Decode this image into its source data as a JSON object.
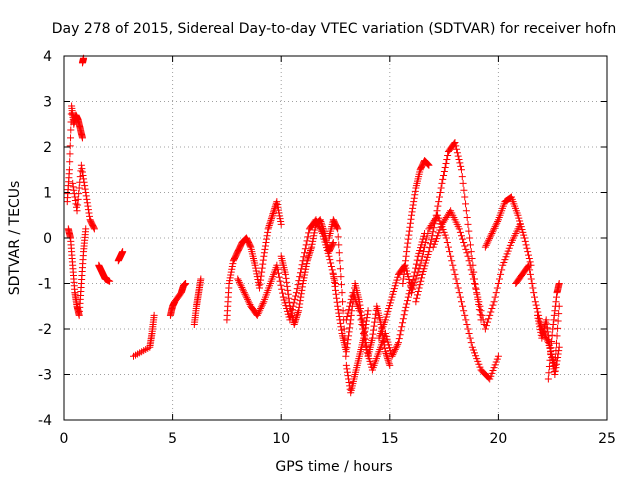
{
  "chart_data": {
    "type": "scatter",
    "title": "Day 278 of 2015, Sidereal Day-to-day VTEC variation (SDTVAR) for receiver hofn",
    "xlabel": "GPS time / hours",
    "ylabel": "SDTVAR / TECUs",
    "xlim": [
      0,
      25
    ],
    "ylim": [
      -4,
      4
    ],
    "xticks": [
      0,
      5,
      10,
      15,
      20,
      25
    ],
    "yticks": [
      -4,
      -3,
      -2,
      -1,
      0,
      1,
      2,
      3,
      4
    ],
    "grid": true,
    "marker": "+",
    "color": "#ff0000",
    "series": [
      {
        "name": "SDTVAR",
        "segments": [
          {
            "x": [
              0.15,
              0.25,
              0.35,
              0.45,
              0.55,
              0.65,
              0.75,
              0.85
            ],
            "y": [
              0.8,
              1.5,
              2.9,
              2.5,
              2.7,
              2.6,
              2.4,
              2.2
            ]
          },
          {
            "x": [
              0.2,
              0.3,
              0.4,
              0.5,
              0.6,
              0.7,
              0.8,
              0.9,
              1.0
            ],
            "y": [
              0.2,
              0.0,
              -0.6,
              -1.2,
              -1.5,
              -1.7,
              -1.0,
              -0.3,
              0.2
            ]
          },
          {
            "x": [
              0.4,
              0.6,
              0.8,
              1.0,
              1.2,
              1.4
            ],
            "y": [
              1.2,
              0.6,
              1.6,
              1.0,
              0.4,
              0.2
            ]
          },
          {
            "x": [
              0.85,
              0.9
            ],
            "y": [
              3.85,
              3.95
            ]
          },
          {
            "x": [
              1.6,
              1.7,
              1.8,
              1.9,
              2.1
            ],
            "y": [
              -0.6,
              -0.7,
              -0.8,
              -0.9,
              -0.95
            ]
          },
          {
            "x": [
              2.5,
              2.6,
              2.7
            ],
            "y": [
              -0.5,
              -0.4,
              -0.3
            ]
          },
          {
            "x": [
              3.2,
              3.95,
              4.05,
              4.15
            ],
            "y": [
              -2.6,
              -2.4,
              -2.1,
              -1.7
            ]
          },
          {
            "x": [
              4.9,
              5.0,
              5.1,
              5.4,
              5.5,
              5.6
            ],
            "y": [
              -1.7,
              -1.5,
              -1.4,
              -1.2,
              -1.05,
              -1.0
            ]
          },
          {
            "x": [
              6.0,
              6.1,
              6.2,
              6.3
            ],
            "y": [
              -1.9,
              -1.5,
              -1.2,
              -0.9
            ]
          },
          {
            "x": [
              7.5,
              7.6,
              7.8,
              8.0,
              8.2,
              8.4,
              8.6,
              8.8,
              9.0,
              9.2,
              9.4,
              9.6,
              9.8,
              10.0
            ],
            "y": [
              -1.8,
              -1.0,
              -0.5,
              -0.3,
              -0.1,
              0.0,
              -0.2,
              -0.6,
              -1.1,
              -0.4,
              0.2,
              0.5,
              0.8,
              0.3
            ]
          },
          {
            "x": [
              8.0,
              8.3,
              8.6,
              8.9,
              9.2,
              9.5,
              9.8,
              10.1,
              10.4,
              10.7,
              11.0,
              11.3,
              11.6,
              11.9,
              12.2,
              12.5
            ],
            "y": [
              -0.9,
              -1.2,
              -1.5,
              -1.7,
              -1.4,
              -1.0,
              -0.6,
              -1.3,
              -1.8,
              -1.2,
              -0.5,
              0.2,
              0.4,
              0.1,
              -0.4,
              -1.0
            ]
          },
          {
            "x": [
              10.0,
              10.2,
              10.4,
              10.6,
              10.8,
              11.0,
              11.2,
              11.4,
              11.6,
              11.8,
              12.0,
              12.2,
              12.4
            ],
            "y": [
              -0.4,
              -0.8,
              -1.5,
              -1.9,
              -1.6,
              -1.0,
              -0.5,
              -0.2,
              0.3,
              0.4,
              0.1,
              -0.3,
              -0.1
            ]
          },
          {
            "x": [
              12.2,
              12.4,
              12.6,
              12.8,
              13.0,
              13.2,
              13.4,
              13.6,
              13.8,
              14.0
            ],
            "y": [
              0.0,
              0.4,
              0.2,
              -1.2,
              -2.8,
              -3.4,
              -3.0,
              -2.6,
              -2.2,
              -1.6
            ]
          },
          {
            "x": [
              12.4,
              12.6,
              12.8,
              13.0,
              13.2,
              13.4,
              13.6,
              13.8,
              14.0,
              14.2,
              14.4,
              14.6,
              14.8,
              15.0
            ],
            "y": [
              -0.8,
              -1.5,
              -2.1,
              -2.5,
              -1.8,
              -1.0,
              -1.4,
              -2.0,
              -2.6,
              -2.2,
              -1.5,
              -1.9,
              -2.5,
              -2.8
            ]
          },
          {
            "x": [
              13.0,
              13.3,
              13.6,
              13.9,
              14.2,
              14.5,
              14.8,
              15.1,
              15.4,
              15.7,
              16.0
            ],
            "y": [
              -1.8,
              -1.2,
              -1.6,
              -2.4,
              -2.9,
              -2.5,
              -2.1,
              -2.6,
              -2.3,
              -1.6,
              -1.0
            ]
          },
          {
            "x": [
              14.5,
              14.8,
              15.1,
              15.4,
              15.7,
              16.0,
              16.3,
              16.6
            ],
            "y": [
              -2.2,
              -1.8,
              -1.3,
              -0.8,
              -0.6,
              -1.1,
              -0.4,
              0.1
            ]
          },
          {
            "x": [
              15.6,
              15.8,
              16.0,
              16.2,
              16.4,
              16.6,
              16.8
            ],
            "y": [
              -1.0,
              -0.2,
              0.5,
              1.1,
              1.5,
              1.7,
              1.6
            ]
          },
          {
            "x": [
              16.2,
              16.5,
              16.8,
              17.1,
              17.4,
              17.7,
              18.0,
              18.3,
              18.6,
              18.9,
              19.2
            ],
            "y": [
              -1.4,
              -0.8,
              -0.3,
              0.4,
              1.2,
              1.9,
              2.1,
              1.5,
              0.3,
              -0.9,
              -1.8
            ]
          },
          {
            "x": [
              16.0,
              16.4,
              16.8,
              17.2,
              17.6,
              18.0,
              18.4,
              18.8,
              19.2,
              19.6,
              20.0
            ],
            "y": [
              -1.2,
              -0.6,
              0.2,
              0.5,
              0.0,
              -0.8,
              -1.6,
              -2.4,
              -2.9,
              -3.1,
              -2.6
            ]
          },
          {
            "x": [
              17.0,
              17.4,
              17.8,
              18.2,
              18.6,
              19.0,
              19.4,
              19.8,
              20.2,
              20.6,
              21.0
            ],
            "y": [
              -0.2,
              0.3,
              0.6,
              0.2,
              -0.4,
              -1.2,
              -2.0,
              -1.4,
              -0.6,
              -0.1,
              0.3
            ]
          },
          {
            "x": [
              19.4,
              19.7,
              20.0,
              20.3,
              20.6,
              20.9,
              21.2,
              21.5
            ],
            "y": [
              -0.2,
              0.1,
              0.4,
              0.8,
              0.9,
              0.5,
              0.0,
              -0.6
            ]
          },
          {
            "x": [
              20.8,
              21.1,
              21.4,
              21.7,
              22.0,
              22.3,
              22.6,
              22.8
            ],
            "y": [
              -1.0,
              -0.8,
              -0.6,
              -1.4,
              -2.0,
              -2.3,
              -2.8,
              -1.5
            ]
          },
          {
            "x": [
              21.8,
              22.0,
              22.2,
              22.4,
              22.6,
              22.8
            ],
            "y": [
              -1.7,
              -2.2,
              -1.8,
              -2.5,
              -3.0,
              -2.4
            ]
          },
          {
            "x": [
              22.3,
              22.5,
              22.7,
              22.8
            ],
            "y": [
              -3.1,
              -2.0,
              -1.2,
              -1.0
            ]
          }
        ]
      }
    ]
  }
}
